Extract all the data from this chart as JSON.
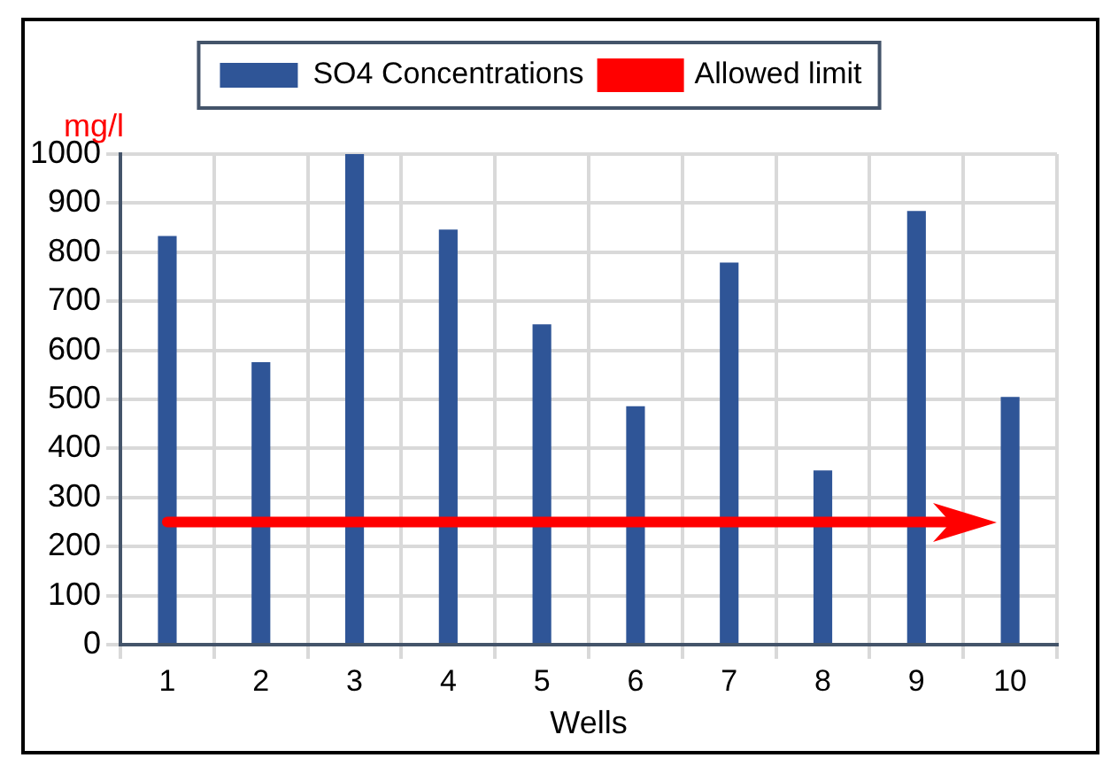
{
  "chart_data": {
    "type": "bar",
    "xlabel": "Wells",
    "ylabel": "mg/l",
    "categories": [
      "1",
      "2",
      "3",
      "4",
      "5",
      "6",
      "7",
      "8",
      "9",
      "10"
    ],
    "series": [
      {
        "name": "SO4 Concentrations",
        "color": "#2f5597",
        "values": [
          833,
          576,
          1000,
          846,
          653,
          486,
          779,
          355,
          884,
          505
        ]
      }
    ],
    "ylim": [
      0,
      1000
    ],
    "yticks": [
      0,
      100,
      200,
      300,
      400,
      500,
      600,
      700,
      800,
      900,
      1000
    ],
    "grid": true,
    "legend": "top",
    "ref_lines": [
      {
        "axis": "y",
        "value": 250,
        "label": "Allowed limit",
        "color": "#ff0000"
      }
    ]
  }
}
